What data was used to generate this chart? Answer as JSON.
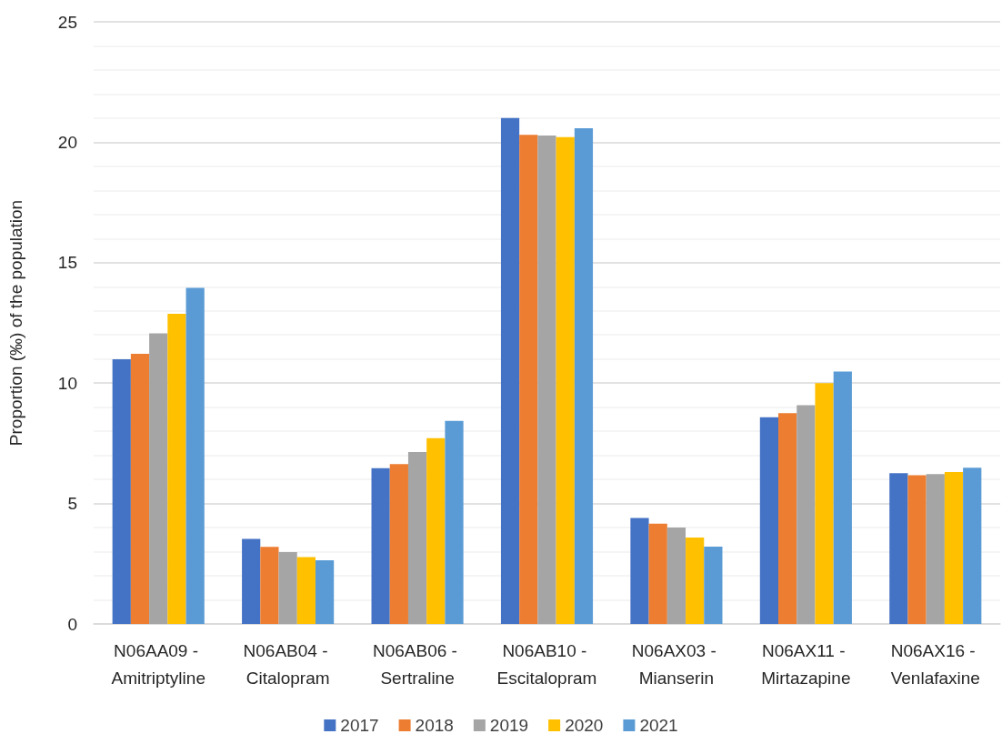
{
  "chart_data": {
    "type": "bar",
    "ylabel": "Proportion (‰) of the population",
    "categories": [
      "N06AA09 - Amitriptyline",
      "N06AB04 - Citalopram",
      "N06AB06 - Sertraline",
      "N06AB10 - Escitalopram",
      "N06AX03 - Mianserin",
      "N06AX11 - Mirtazapine",
      "N06AX16 - Venlafaxine"
    ],
    "series": [
      {
        "name": "2017",
        "color": "#4472c4",
        "values": [
          10.99,
          3.53,
          6.47,
          21.01,
          4.4,
          8.58,
          6.26
        ]
      },
      {
        "name": "2018",
        "color": "#ed7d31",
        "values": [
          11.22,
          3.2,
          6.64,
          20.31,
          4.16,
          8.75,
          6.17
        ]
      },
      {
        "name": "2019",
        "color": "#a5a5a5",
        "values": [
          12.07,
          2.98,
          7.14,
          20.28,
          4.0,
          9.08,
          6.22
        ]
      },
      {
        "name": "2020",
        "color": "#ffc000",
        "values": [
          12.88,
          2.78,
          7.71,
          20.21,
          3.59,
          10.0,
          6.31
        ]
      },
      {
        "name": "2021",
        "color": "#5b9bd5",
        "values": [
          13.95,
          2.64,
          8.43,
          20.58,
          3.21,
          10.48,
          6.49
        ]
      }
    ],
    "ylim": [
      0,
      25
    ],
    "yticks": [
      0,
      {
        "value": 1,
        "label": null
      },
      {
        "value": 2,
        "label": null
      },
      {
        "value": 3,
        "label": null
      },
      {
        "value": 4,
        "label": null
      },
      5,
      {
        "value": 6,
        "label": null
      },
      {
        "value": 7,
        "label": null
      },
      {
        "value": 8,
        "label": null
      },
      {
        "value": 9,
        "label": null
      },
      10,
      {
        "value": 11,
        "label": null
      },
      {
        "value": 12,
        "label": null
      },
      {
        "value": 13,
        "label": null
      },
      {
        "value": 14,
        "label": null
      },
      15,
      {
        "value": 16,
        "label": null
      },
      {
        "value": 17,
        "label": null
      },
      {
        "value": 18,
        "label": null
      },
      {
        "value": 19,
        "label": null
      },
      20,
      {
        "value": 21,
        "label": null
      },
      {
        "value": 22,
        "label": null
      },
      {
        "value": 23,
        "label": null
      },
      {
        "value": 24,
        "label": null
      },
      25
    ],
    "grid": "y",
    "legend": "bottom"
  }
}
